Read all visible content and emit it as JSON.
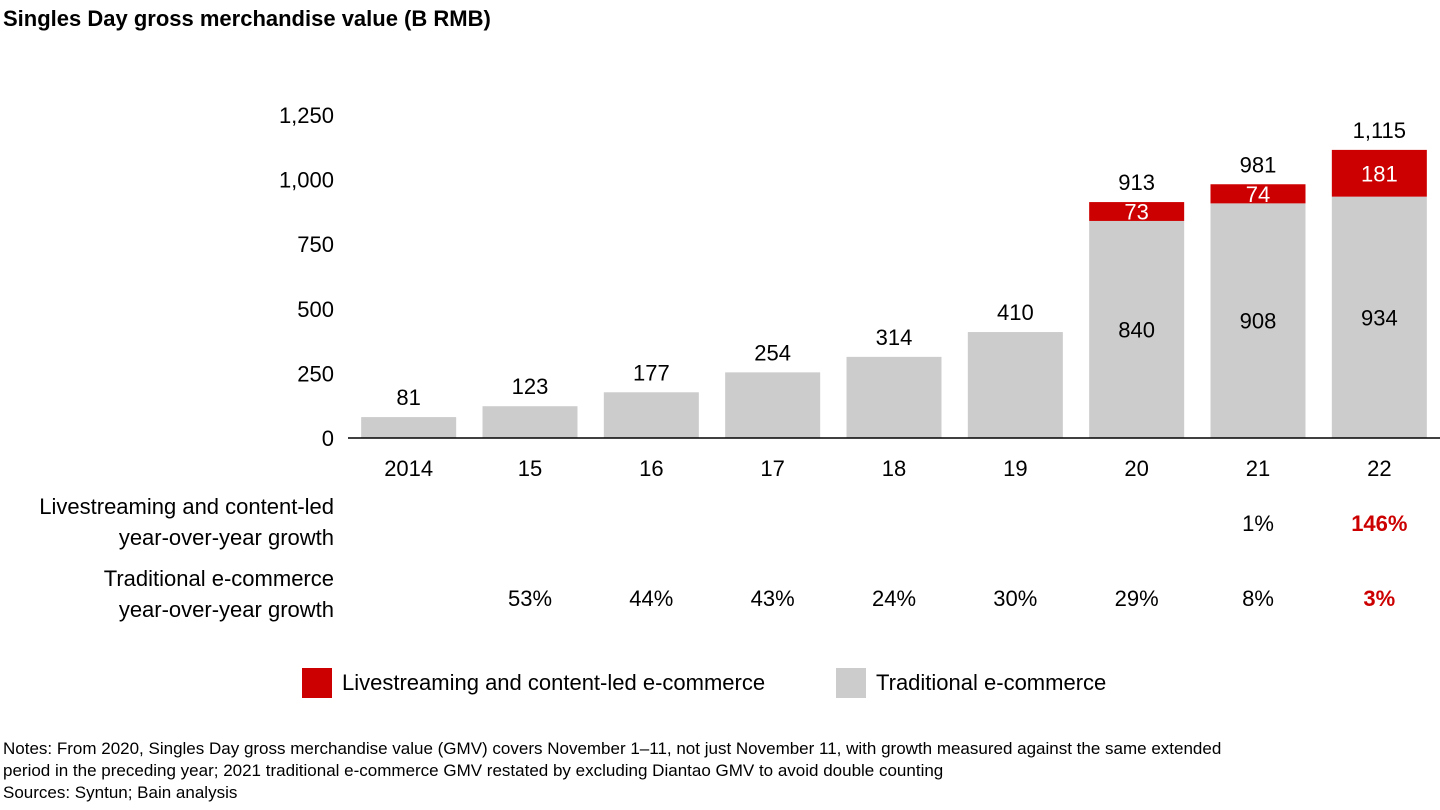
{
  "chart_data": {
    "type": "bar",
    "stacked": true,
    "title": "Singles Day gross merchandise value (B RMB)",
    "categories": [
      "2014",
      "15",
      "16",
      "17",
      "18",
      "19",
      "20",
      "21",
      "22"
    ],
    "series": [
      {
        "name": "Traditional e-commerce",
        "color": "#cccccc",
        "values": [
          81,
          123,
          177,
          254,
          314,
          410,
          840,
          908,
          934
        ]
      },
      {
        "name": "Livestreaming and content-led e-commerce",
        "color": "#cc0000",
        "values": [
          null,
          null,
          null,
          null,
          null,
          null,
          73,
          74,
          181
        ]
      }
    ],
    "totals": [
      "81",
      "123",
      "177",
      "254",
      "314",
      "410",
      "913",
      "981",
      "1,115"
    ],
    "ylim": [
      0,
      1250
    ],
    "yticks": [
      0,
      250,
      500,
      750,
      1000,
      1250
    ],
    "ytick_labels": [
      "0",
      "250",
      "500",
      "750",
      "1,000",
      "1,250"
    ]
  },
  "growth": {
    "livestreaming_label_line1": "Livestreaming and content-led",
    "livestreaming_label_line2": "year-over-year growth",
    "livestreaming_values": [
      "",
      "",
      "",
      "",
      "",
      "",
      "",
      "1%",
      "146%"
    ],
    "traditional_label_line1": "Traditional e-commerce",
    "traditional_label_line2": "year-over-year growth",
    "traditional_values": [
      "",
      "53%",
      "44%",
      "43%",
      "24%",
      "30%",
      "29%",
      "8%",
      "3%"
    ],
    "highlight_color": "#cc0000"
  },
  "legend": {
    "livestreaming": "Livestreaming and content-led e-commerce",
    "traditional": "Traditional e-commerce"
  },
  "notes": {
    "line1": "Notes: From 2020, Singles Day gross merchandise value (GMV) covers November 1–11, not just November 11, with growth measured against the same extended",
    "line2": "period in the preceding year; 2021 traditional e-commerce GMV restated by excluding Diantao GMV to avoid double counting",
    "line3": "Sources: Syntun; Bain analysis"
  }
}
